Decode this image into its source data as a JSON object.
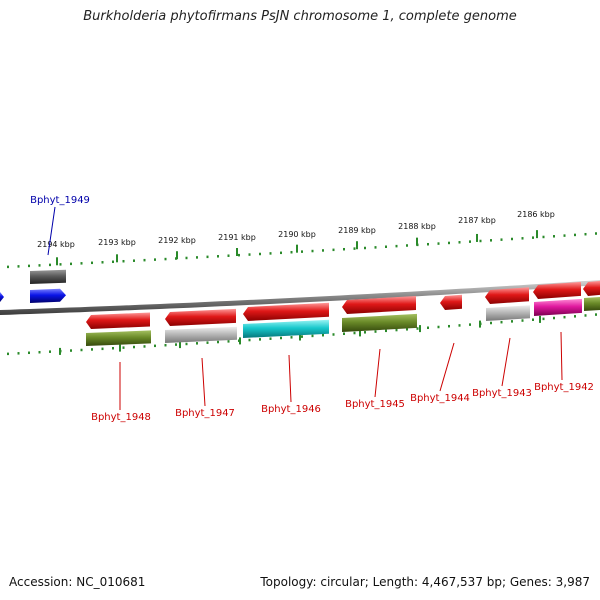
{
  "title": "Burkholderia phytofirmans PsJN chromosome 1, complete genome",
  "footer": {
    "accession": "Accession: NC_010681",
    "summary": "Topology: circular; Length: 4,467,537 bp; Genes: 3,987"
  },
  "scale": {
    "unit": "kbp",
    "ticks": [
      "2194 kbp",
      "2193 kbp",
      "2192 kbp",
      "2191 kbp",
      "2190 kbp",
      "2189 kbp",
      "2188 kbp",
      "2187 kbp",
      "2186 kbp"
    ]
  },
  "colors": {
    "backbone": "#8a8a8a",
    "tick": "#2a8a2a",
    "label_forward": "#0000aa",
    "label_reverse": "#cc0000",
    "gene_red": "#e01818",
    "gene_blue": "#0a14e8",
    "gene_grey_dark": "#5a5a5a",
    "gene_olive": "#6a8a28",
    "gene_silver": "#b8b8b8",
    "gene_cyan": "#18c8cc",
    "gene_magenta": "#e0189e"
  },
  "genes": [
    {
      "label": "Bphyt_1949",
      "strand": "forward"
    },
    {
      "label": "Bphyt_1948",
      "strand": "reverse"
    },
    {
      "label": "Bphyt_1947",
      "strand": "reverse"
    },
    {
      "label": "Bphyt_1946",
      "strand": "reverse"
    },
    {
      "label": "Bphyt_1945",
      "strand": "reverse"
    },
    {
      "label": "Bphyt_1944",
      "strand": "reverse"
    },
    {
      "label": "Bphyt_1943",
      "strand": "reverse"
    },
    {
      "label": "Bphyt_1942",
      "strand": "reverse"
    }
  ]
}
